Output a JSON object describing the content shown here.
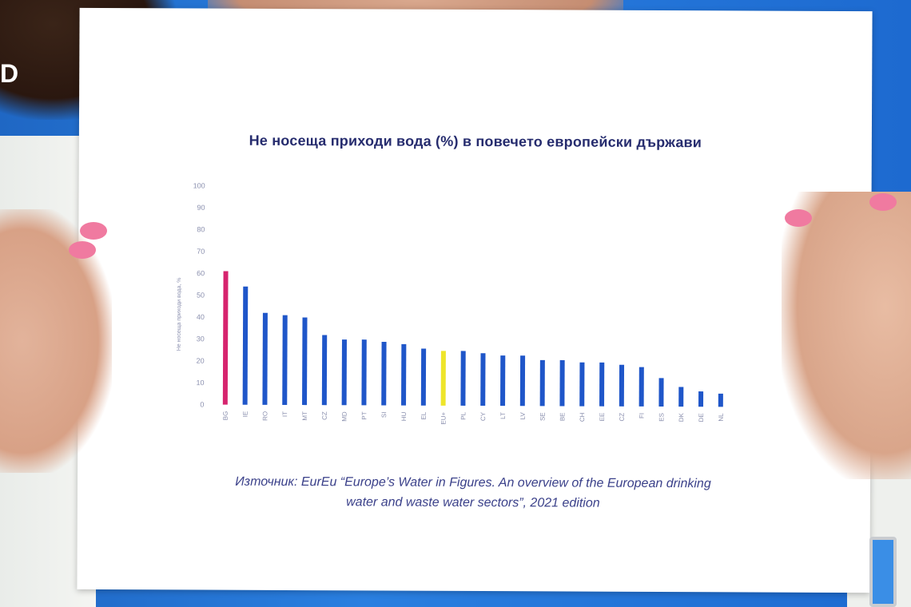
{
  "broadcast": {
    "logo_text": "D"
  },
  "chart_data": {
    "type": "bar",
    "title": "Не носеща приходи вода (%) в повечето европейски държави",
    "ylabel": "Не носеща приходи вода, %",
    "ylim": [
      0,
      100
    ],
    "yticks": [
      0,
      10,
      20,
      30,
      40,
      50,
      60,
      70,
      80,
      90,
      100
    ],
    "categories": [
      "BG",
      "IE",
      "RO",
      "IT",
      "MT",
      "CZ",
      "MD",
      "PT",
      "SI",
      "HU",
      "EL",
      "EU+",
      "PL",
      "CY",
      "LT",
      "LV",
      "SE",
      "BE",
      "CH",
      "EE",
      "CZ",
      "FI",
      "ES",
      "DK",
      "DE",
      "NL"
    ],
    "values": [
      61,
      54,
      42,
      41,
      40,
      32,
      30,
      30,
      29,
      28,
      26,
      25,
      25,
      24,
      23,
      23,
      21,
      21,
      20,
      20,
      19,
      18,
      13,
      9,
      7,
      6
    ],
    "colors": {
      "default": "#1f56c9",
      "highlight_BG": "#d6246e",
      "highlight_EU": "#eee52a"
    },
    "grid": false,
    "legend": "none"
  },
  "source": {
    "line1": "Източник: EurEu “Europe’s Water in Figures. An overview of the European drinking",
    "line2": "water and waste water sectors”, 2021 edition"
  }
}
